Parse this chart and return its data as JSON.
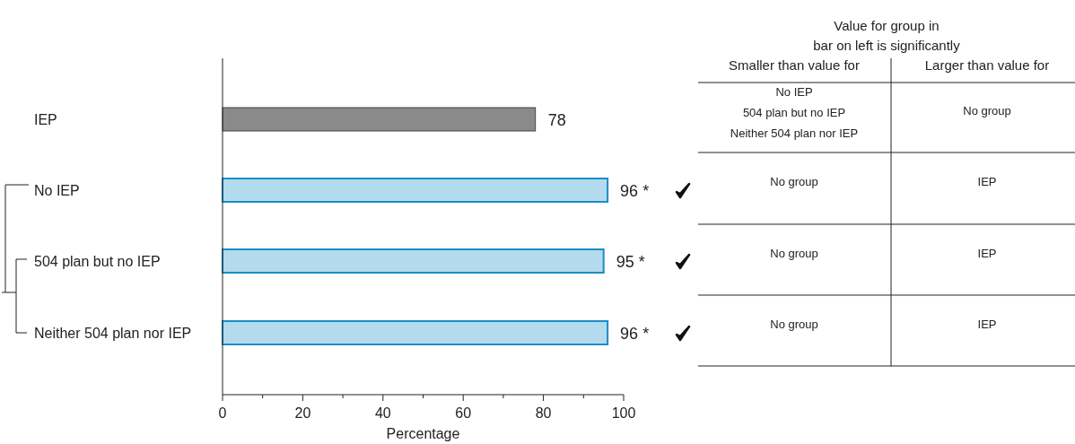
{
  "chart_data": {
    "type": "bar",
    "orientation": "horizontal",
    "categories": [
      "IEP",
      "No IEP",
      "504 plan but no IEP",
      "Neither 504 plan nor IEP"
    ],
    "values": [
      78,
      96,
      95,
      96
    ],
    "colors": [
      "#8a8a8a",
      "#b4daee",
      "#b4daee",
      "#b4daee"
    ],
    "value_labels": [
      "78",
      "96 *",
      "95 *",
      "96 *"
    ],
    "xlim": [
      0,
      100
    ],
    "xticks": [
      0,
      {
        "value": 10,
        "label": null
      },
      20,
      {
        "value": 30,
        "label": null
      },
      40,
      {
        "value": 50,
        "label": null
      },
      60,
      {
        "value": 70,
        "label": null
      },
      80,
      {
        "value": 90,
        "label": null
      },
      100
    ],
    "xlabel": "Percentage",
    "grid": false,
    "annotations": [
      "Value for group in\nbar on left is significantly",
      "Smaller than value for",
      "Larger than value for",
      "No IEP\n504 plan but no IEP\nNeither 504 plan nor IEP",
      "No group",
      "No group",
      "IEP",
      "No group",
      "IEP",
      "No group",
      "IEP"
    ]
  }
}
